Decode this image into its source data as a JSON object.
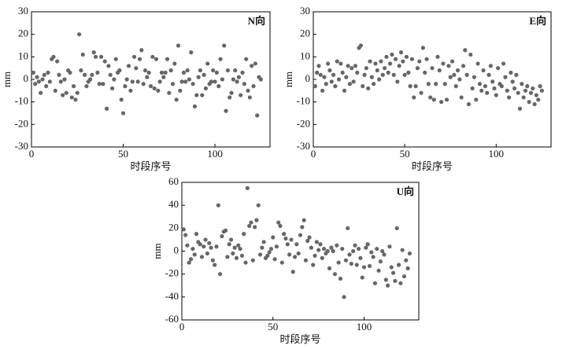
{
  "chart_data": [
    {
      "type": "scatter",
      "title": "N向",
      "x_label": "时段序号",
      "y_label": "mm",
      "color": "#666666",
      "xlim": [
        0,
        130
      ],
      "ylim": [
        -30,
        30
      ],
      "xticks": [
        0,
        50,
        100
      ],
      "yticks": [
        -30,
        -20,
        -10,
        0,
        10,
        20,
        30
      ],
      "x": [
        1,
        2,
        3,
        4,
        5,
        6,
        7,
        8,
        9,
        10,
        11,
        12,
        13,
        14,
        15,
        16,
        17,
        18,
        19,
        20,
        21,
        22,
        23,
        24,
        25,
        26,
        27,
        28,
        29,
        30,
        31,
        32,
        33,
        34,
        35,
        36,
        37,
        38,
        39,
        40,
        41,
        42,
        43,
        44,
        45,
        46,
        47,
        48,
        49,
        50,
        51,
        52,
        53,
        54,
        55,
        56,
        57,
        58,
        59,
        60,
        61,
        62,
        63,
        64,
        65,
        66,
        67,
        68,
        69,
        70,
        71,
        72,
        73,
        74,
        75,
        76,
        77,
        78,
        79,
        80,
        81,
        82,
        83,
        84,
        85,
        86,
        87,
        88,
        89,
        90,
        91,
        92,
        93,
        94,
        95,
        96,
        97,
        98,
        99,
        100,
        101,
        102,
        103,
        104,
        105,
        106,
        107,
        108,
        109,
        110,
        111,
        112,
        113,
        114,
        115,
        116,
        117,
        118,
        119,
        120,
        121,
        122,
        123,
        124,
        125
      ],
      "values": [
        3,
        -2,
        1,
        -1,
        -6,
        0,
        2,
        -3,
        3,
        -1,
        9,
        10,
        -5,
        8,
        2,
        -1,
        -7,
        0,
        -6,
        4,
        3,
        -8,
        -3,
        -9,
        -6,
        20,
        4,
        11,
        2,
        -3,
        -1,
        0,
        2,
        12,
        10,
        3,
        -2,
        10,
        -2,
        8,
        -13,
        6,
        2,
        -4,
        0,
        9,
        3,
        4,
        -9,
        -15,
        -3,
        0,
        6,
        -5,
        -1,
        10,
        5,
        -1,
        9,
        13,
        -2,
        4,
        1,
        3,
        -3,
        10,
        -4,
        9,
        -5,
        -1,
        3,
        1,
        3,
        9,
        -6,
        4,
        -2,
        7,
        -9,
        15,
        -5,
        -1,
        3,
        -1,
        4,
        0,
        12,
        -2,
        -12,
        -7,
        1,
        4,
        -7,
        2,
        -4,
        7,
        -2,
        -1,
        4,
        -1,
        3,
        -3,
        9,
        0,
        15,
        -14,
        4,
        -8,
        -6,
        0,
        4,
        -1,
        1,
        -7,
        3,
        -2,
        9,
        -5,
        -8,
        6,
        -3,
        7,
        -16,
        1,
        0
      ]
    },
    {
      "type": "scatter",
      "title": "E向",
      "x_label": "时段序号",
      "y_label": "mm",
      "color": "#666666",
      "xlim": [
        0,
        130
      ],
      "ylim": [
        -30,
        30
      ],
      "xticks": [
        0,
        50,
        100
      ],
      "yticks": [
        -30,
        -20,
        -10,
        0,
        10,
        20,
        30
      ],
      "x": [
        1,
        2,
        3,
        4,
        5,
        6,
        7,
        8,
        9,
        10,
        11,
        12,
        13,
        14,
        15,
        16,
        17,
        18,
        19,
        20,
        21,
        22,
        23,
        24,
        25,
        26,
        27,
        28,
        29,
        30,
        31,
        32,
        33,
        34,
        35,
        36,
        37,
        38,
        39,
        40,
        41,
        42,
        43,
        44,
        45,
        46,
        47,
        48,
        49,
        50,
        51,
        52,
        53,
        54,
        55,
        56,
        57,
        58,
        59,
        60,
        61,
        62,
        63,
        64,
        65,
        66,
        67,
        68,
        69,
        70,
        71,
        72,
        73,
        74,
        75,
        76,
        77,
        78,
        79,
        80,
        81,
        82,
        83,
        84,
        85,
        86,
        87,
        88,
        89,
        90,
        91,
        92,
        93,
        94,
        95,
        96,
        97,
        98,
        99,
        100,
        101,
        102,
        103,
        104,
        105,
        106,
        107,
        108,
        109,
        110,
        111,
        112,
        113,
        114,
        115,
        116,
        117,
        118,
        119,
        120,
        121,
        122,
        123,
        124,
        125
      ],
      "values": [
        -3,
        3,
        6,
        2,
        -5,
        1,
        -2,
        7,
        4,
        -1,
        2,
        -3,
        8,
        0,
        7,
        3,
        -5,
        1,
        6,
        -2,
        5,
        -1,
        6,
        3,
        14,
        15,
        -3,
        2,
        5,
        -4,
        8,
        1,
        -2,
        7,
        4,
        0,
        8,
        2,
        5,
        10,
        3,
        7,
        11,
        2,
        9,
        -1,
        6,
        12,
        8,
        2,
        10,
        3,
        -3,
        9,
        -8,
        -3,
        5,
        8,
        -6,
        14,
        3,
        9,
        -2,
        -8,
        5,
        -9,
        -2,
        10,
        4,
        -10,
        7,
        -2,
        -9,
        6,
        1,
        8,
        2,
        -3,
        4,
        0,
        -8,
        6,
        13,
        2,
        -11,
        11,
        -4,
        1,
        -9,
        7,
        -2,
        -5,
        4,
        -3,
        -6,
        2,
        6,
        -1,
        -4,
        -7,
        5,
        -2,
        -3,
        7,
        1,
        -5,
        -8,
        3,
        -1,
        -4,
        2,
        -6,
        -13,
        -2,
        -8,
        -5,
        -3,
        -10,
        -6,
        -4,
        -11,
        -7,
        -9,
        -3,
        -5
      ]
    },
    {
      "type": "scatter",
      "title": "U向",
      "x_label": "时段序号",
      "y_label": "mm",
      "color": "#666666",
      "xlim": [
        0,
        130
      ],
      "ylim": [
        -60,
        60
      ],
      "xticks": [
        0,
        50,
        100
      ],
      "yticks": [
        -60,
        -40,
        -20,
        0,
        20,
        40,
        60
      ],
      "x": [
        1,
        2,
        3,
        4,
        5,
        6,
        7,
        8,
        9,
        10,
        11,
        12,
        13,
        14,
        15,
        16,
        17,
        18,
        19,
        20,
        21,
        22,
        23,
        24,
        25,
        26,
        27,
        28,
        29,
        30,
        31,
        32,
        33,
        34,
        35,
        36,
        37,
        38,
        39,
        40,
        41,
        42,
        43,
        44,
        45,
        46,
        47,
        48,
        49,
        50,
        51,
        52,
        53,
        54,
        55,
        56,
        57,
        58,
        59,
        60,
        61,
        62,
        63,
        64,
        65,
        66,
        67,
        68,
        69,
        70,
        71,
        72,
        73,
        74,
        75,
        76,
        77,
        78,
        79,
        80,
        81,
        82,
        83,
        84,
        85,
        86,
        87,
        88,
        89,
        90,
        91,
        92,
        93,
        94,
        95,
        96,
        97,
        98,
        99,
        100,
        101,
        102,
        103,
        104,
        105,
        106,
        107,
        108,
        109,
        110,
        111,
        112,
        113,
        114,
        115,
        116,
        117,
        118,
        119,
        120,
        121,
        122,
        123,
        124,
        125
      ],
      "values": [
        19,
        14,
        5,
        -10,
        -7,
        2,
        -3,
        15,
        8,
        6,
        -5,
        4,
        10,
        -2,
        7,
        3,
        -8,
        -12,
        4,
        40,
        -20,
        13,
        17,
        18,
        -5,
        6,
        10,
        -2,
        3,
        -6,
        5,
        2,
        -4,
        15,
        -10,
        55,
        22,
        25,
        -8,
        21,
        27,
        40,
        -3,
        3,
        8,
        -6,
        -4,
        -1,
        2,
        12,
        -7,
        4,
        25,
        22,
        -10,
        15,
        11,
        6,
        -3,
        10,
        -18,
        -5,
        6,
        -2,
        14,
        21,
        27,
        -8,
        9,
        12,
        3,
        -12,
        -4,
        8,
        1,
        6,
        -6,
        2,
        -2,
        0,
        -15,
        3,
        0,
        -20,
        5,
        -10,
        -24,
        2,
        -40,
        -8,
        20,
        -3,
        -11,
        0,
        5,
        -12,
        2,
        -6,
        -23,
        -14,
        3,
        6,
        -13,
        -1,
        -5,
        -28,
        2,
        -17,
        -9,
        0,
        -3,
        -25,
        -30,
        4,
        -14,
        -19,
        -26,
        20,
        -12,
        -28,
        1,
        -22,
        -8,
        -15,
        -2
      ]
    }
  ]
}
